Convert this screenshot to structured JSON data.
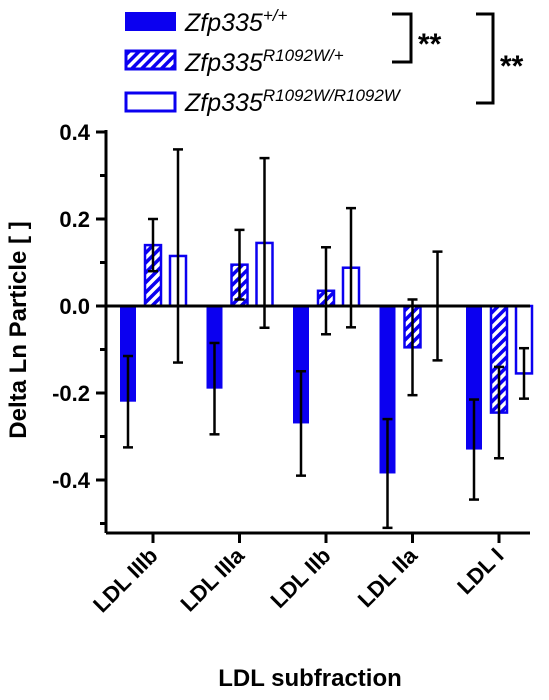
{
  "chart_data": {
    "type": "bar",
    "title": "",
    "xlabel": "LDL subfraction",
    "ylabel": "Delta Ln Particle [ ]",
    "ylim": [
      -0.55,
      0.4
    ],
    "yticks": [
      "0.4",
      "0.2",
      "0.0",
      "-0.2",
      "-0.4"
    ],
    "ytick_values": [
      0.4,
      0.2,
      0.0,
      -0.2,
      -0.4
    ],
    "categories": [
      "LDL IIIb",
      "LDL IIIa",
      "LDL IIb",
      "LDL IIa",
      "LDL I"
    ],
    "series": [
      {
        "name_base": "Zfp335",
        "name_sup": "+/+",
        "style": "solid",
        "values": [
          -0.22,
          -0.19,
          -0.27,
          -0.385,
          -0.33
        ],
        "error": [
          0.105,
          0.105,
          0.12,
          0.125,
          0.115
        ]
      },
      {
        "name_base": "Zfp335",
        "name_sup": "R1092W/+",
        "style": "hatched",
        "values": [
          0.14,
          0.095,
          0.035,
          -0.095,
          -0.245
        ],
        "error": [
          0.06,
          0.08,
          0.1,
          0.11,
          0.105
        ]
      },
      {
        "name_base": "Zfp335",
        "name_sup": "R1092W/R1092W",
        "style": "open",
        "values": [
          0.115,
          0.145,
          0.088,
          0.0,
          -0.155
        ],
        "error": [
          0.245,
          0.195,
          0.137,
          0.125,
          0.058
        ]
      }
    ],
    "legend_position": "top",
    "grid": false,
    "colors": {
      "bar": "#0b00f0",
      "axis": "#000000",
      "error": "#000000"
    },
    "significance": [
      "**",
      "**"
    ]
  }
}
